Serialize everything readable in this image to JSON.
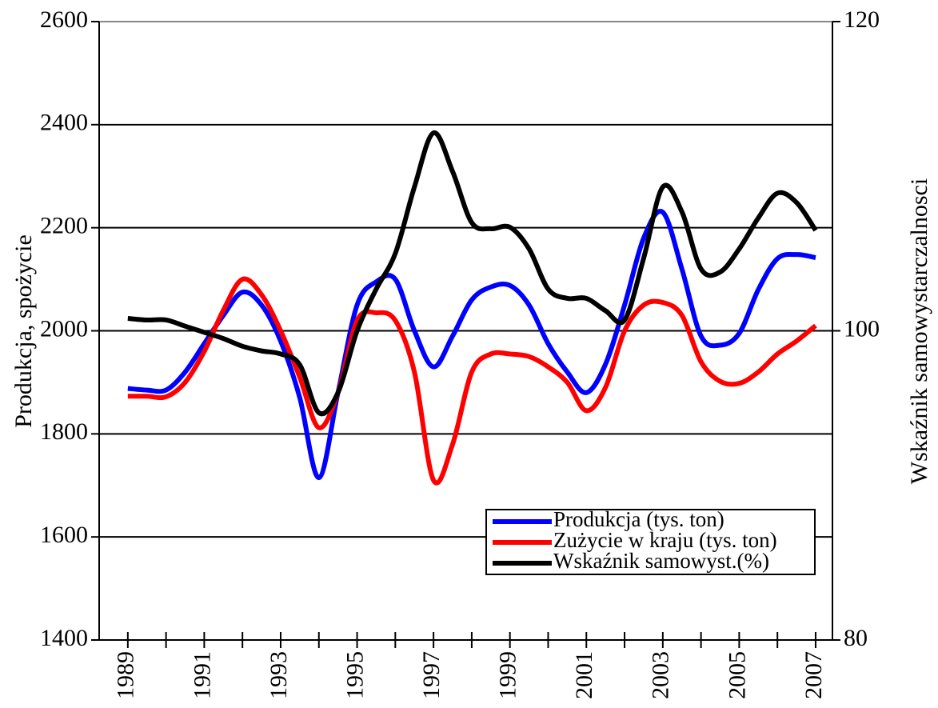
{
  "chart_data": {
    "type": "line",
    "y_label": "Produkcja, spożycie",
    "y2_label": "Wskaźnik samowystarczalnosci",
    "x": [
      1989,
      1989.5,
      1990,
      1990.5,
      1991,
      1991.5,
      1992,
      1992.5,
      1993,
      1993.5,
      1994,
      1994.5,
      1995,
      1995.5,
      1996,
      1996.5,
      1997,
      1997.5,
      1998,
      1998.5,
      1999,
      1999.5,
      2000,
      2000.5,
      2001,
      2001.5,
      2002,
      2002.5,
      2003,
      2003.5,
      2004,
      2004.5,
      2005,
      2005.5,
      2006,
      2006.5,
      2007
    ],
    "series": [
      {
        "name": "Produkcja (tys. ton)",
        "color": "#0000ff",
        "values": [
          1888,
          1885,
          1885,
          1920,
          1975,
          2030,
          2075,
          2050,
          1980,
          1870,
          1715,
          1880,
          2050,
          2095,
          2100,
          2000,
          1930,
          1990,
          2060,
          2085,
          2088,
          2050,
          1975,
          1920,
          1880,
          1935,
          2050,
          2180,
          2230,
          2120,
          1990,
          1972,
          1995,
          2080,
          2140,
          2148,
          2142
        ]
      },
      {
        "name": "Zużycie w kraju (tys. ton)",
        "color": "#ff0000",
        "values": [
          1873,
          1873,
          1872,
          1900,
          1960,
          2040,
          2100,
          2070,
          2000,
          1910,
          1812,
          1880,
          2020,
          2035,
          2020,
          1920,
          1710,
          1780,
          1920,
          1955,
          1955,
          1950,
          1930,
          1900,
          1845,
          1890,
          2000,
          2050,
          2055,
          2030,
          1940,
          1902,
          1898,
          1920,
          1955,
          1980,
          2010
        ]
      },
      {
        "name": "Wskaźnik samowyst.(%)",
        "color": "#000000",
        "axis": "y2",
        "values": [
          100.8,
          100.7,
          100.7,
          100.3,
          99.9,
          99.5,
          99.0,
          98.7,
          98.5,
          97.8,
          94.7,
          96.0,
          100.0,
          102.7,
          105.0,
          109.3,
          112.8,
          110.3,
          107.0,
          106.6,
          106.7,
          105.3,
          102.7,
          102.1,
          102.1,
          101.3,
          100.7,
          104.7,
          109.3,
          107.7,
          104.0,
          103.8,
          105.3,
          107.3,
          108.9,
          108.3,
          106.5
        ]
      }
    ],
    "xlim": [
      1988.25,
      2007.44
    ],
    "xticks": [
      1989,
      1991,
      1993,
      1995,
      1997,
      1999,
      2001,
      2003,
      2005,
      2007
    ],
    "xminorticks": [
      1990,
      1992,
      1994,
      1996,
      1998,
      2000,
      2002,
      2004,
      2006
    ],
    "ylim": [
      1400,
      2600
    ],
    "yticks": [
      1400,
      1600,
      1800,
      2000,
      2200,
      2400,
      2600
    ],
    "y2lim": [
      80,
      120
    ],
    "y2ticks": [
      80,
      100,
      120
    ],
    "grid": true,
    "legend": "lower right"
  }
}
